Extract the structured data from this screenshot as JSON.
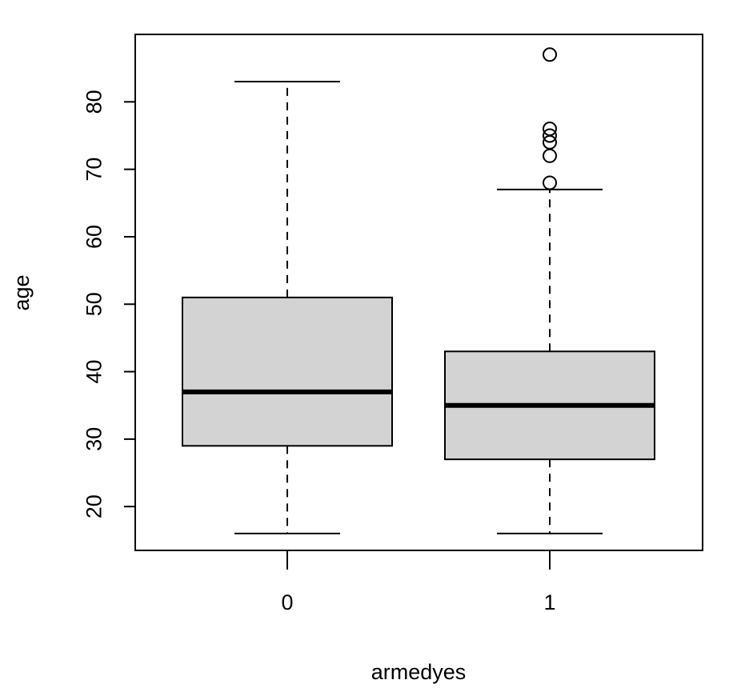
{
  "chart_data": {
    "type": "boxplot",
    "xlabel": "armedyes",
    "ylabel": "age",
    "categories": [
      "0",
      "1"
    ],
    "ylim": [
      13.5,
      90
    ],
    "yticks": [
      20,
      30,
      40,
      50,
      60,
      70,
      80
    ],
    "grid": false,
    "box_fill": "#d3d3d3",
    "boxes": [
      {
        "category": "0",
        "whisker_low": 16,
        "q1": 29,
        "median": 37,
        "q3": 51,
        "whisker_high": 83,
        "outliers": []
      },
      {
        "category": "1",
        "whisker_low": 16,
        "q1": 27,
        "median": 35,
        "q3": 43,
        "whisker_high": 67,
        "outliers": [
          68,
          72,
          74,
          75,
          76,
          87
        ]
      }
    ]
  }
}
